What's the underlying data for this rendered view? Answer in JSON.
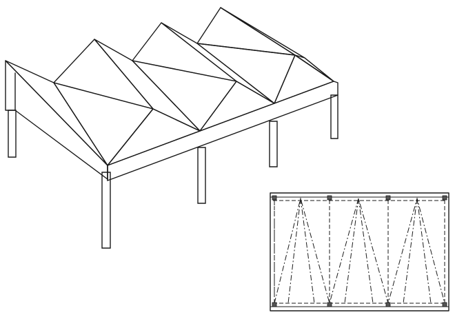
{
  "figure": {
    "views": [
      "isometric-view",
      "plan-view"
    ],
    "colors": {
      "ink": "#1a1a1a",
      "paper": "#ffffff"
    }
  }
}
